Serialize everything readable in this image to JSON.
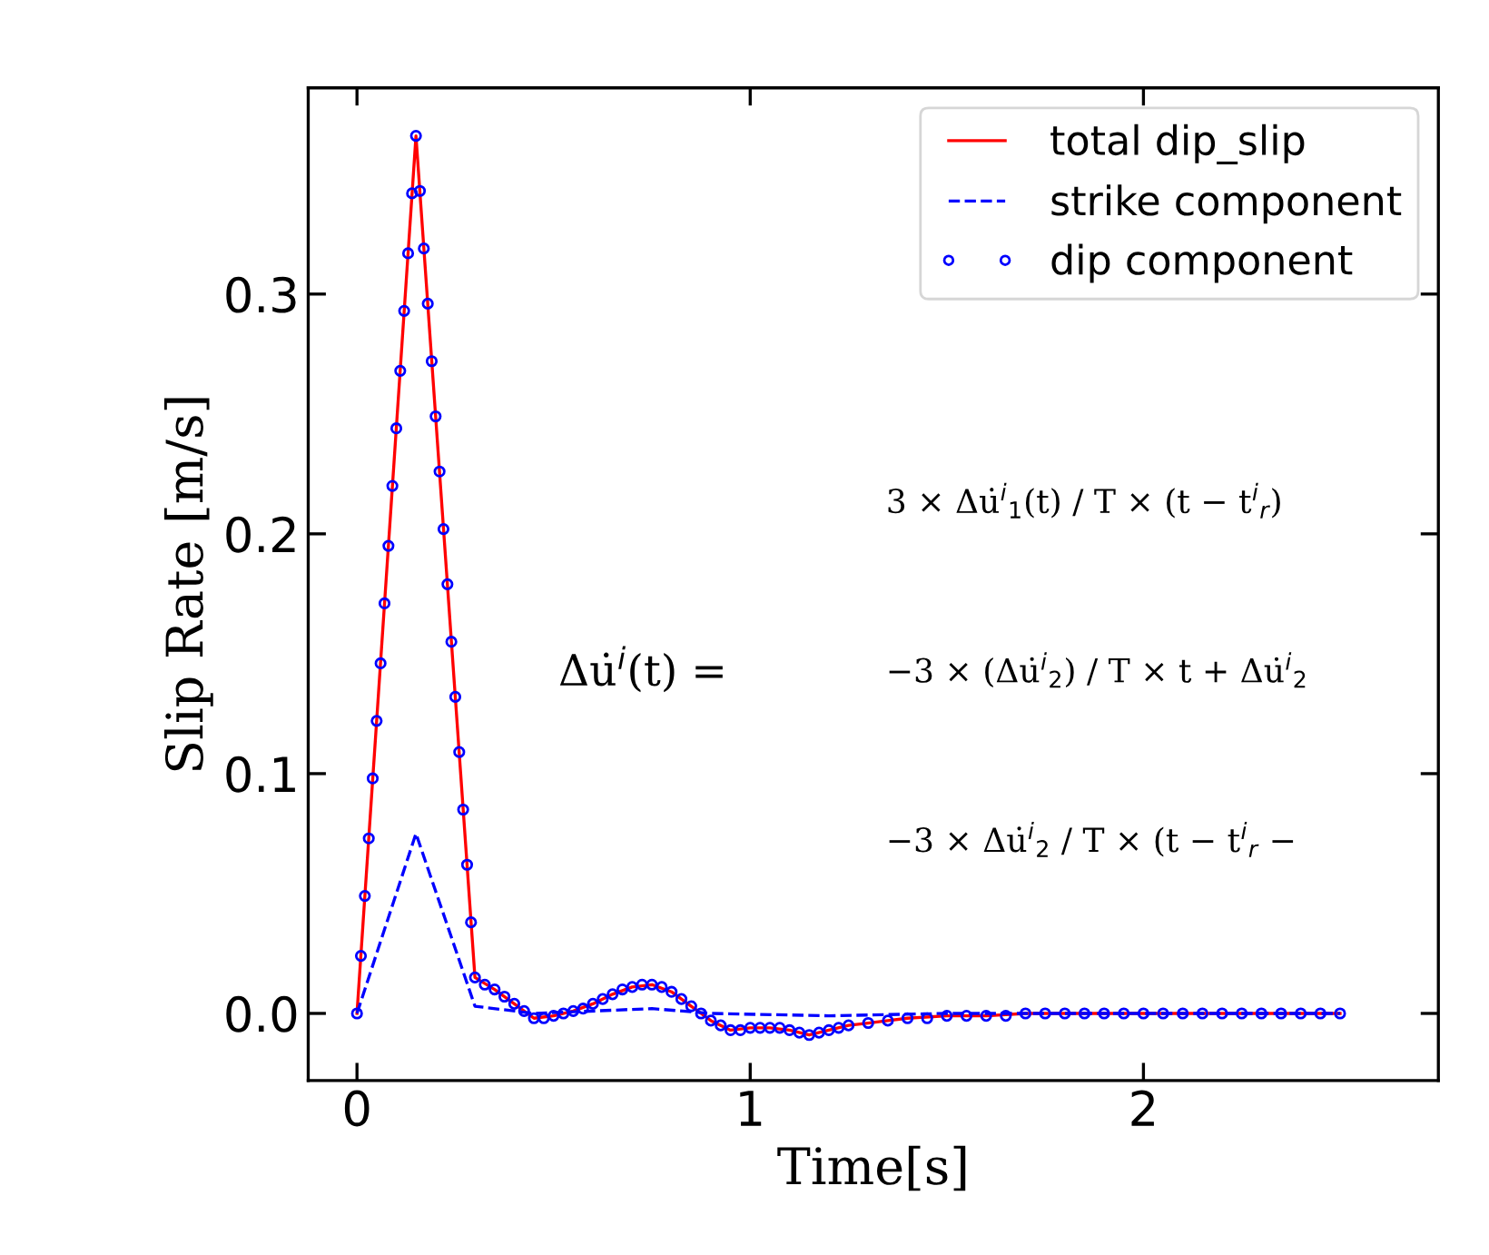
{
  "chart_data": {
    "type": "line",
    "xlabel": "Time[s]",
    "ylabel": "Slip Rate [m/s]",
    "xlim": [
      -0.124,
      2.75
    ],
    "ylim": [
      -0.028,
      0.386
    ],
    "xticks": [
      0,
      1,
      2
    ],
    "yticks": [
      {
        "value": 0,
        "label": "0.0"
      },
      0.1,
      0.2,
      0.3
    ],
    "grid": false,
    "legend": "top right",
    "series": [
      {
        "name": "total dip_slip",
        "color": "#ff0000",
        "line_style": "solid",
        "marker": "none",
        "x": [
          0,
          0.15,
          0.3,
          0.35,
          0.4,
          0.45,
          0.5,
          0.55,
          0.6,
          0.65,
          0.7,
          0.75,
          0.8,
          0.85,
          0.9,
          0.95,
          1.0,
          1.05,
          1.1,
          1.15,
          1.2,
          1.25,
          1.3,
          1.35,
          1.4,
          1.5,
          1.6,
          1.7,
          2.0,
          2.5
        ],
        "values": [
          0,
          0.366,
          0.015,
          0.01,
          0.004,
          -0.002,
          -0.001,
          0.001,
          0.004,
          0.008,
          0.011,
          0.012,
          0.009,
          0.003,
          -0.003,
          -0.007,
          -0.006,
          -0.006,
          -0.007,
          -0.009,
          -0.007,
          -0.005,
          -0.004,
          -0.003,
          -0.002,
          -0.001,
          -0.001,
          0,
          0,
          0
        ]
      },
      {
        "name": "strike component",
        "color": "#0000ff",
        "line_style": "dashed",
        "marker": "none",
        "x": [
          0,
          0.15,
          0.3,
          0.45,
          0.75,
          0.9,
          1.2,
          1.5,
          2.5
        ],
        "values": [
          0,
          0.075,
          0.003,
          0.0,
          0.002,
          0.0,
          -0.001,
          0.0,
          0.0
        ]
      },
      {
        "name": "dip component",
        "type": "scatter",
        "color": "#0000ff",
        "marker": "circle",
        "x": [
          0,
          0.01,
          0.02,
          0.03,
          0.04,
          0.05,
          0.06,
          0.07,
          0.08,
          0.09,
          0.1,
          0.11,
          0.12,
          0.13,
          0.14,
          0.15,
          0.16,
          0.17,
          0.18,
          0.19,
          0.2,
          0.21,
          0.22,
          0.23,
          0.24,
          0.25,
          0.26,
          0.27,
          0.28,
          0.29,
          0.3,
          0.325,
          0.35,
          0.375,
          0.4,
          0.425,
          0.45,
          0.475,
          0.5,
          0.525,
          0.55,
          0.575,
          0.6,
          0.625,
          0.65,
          0.675,
          0.7,
          0.725,
          0.75,
          0.775,
          0.8,
          0.825,
          0.85,
          0.875,
          0.9,
          0.925,
          0.95,
          0.975,
          1.0,
          1.025,
          1.05,
          1.075,
          1.1,
          1.125,
          1.15,
          1.175,
          1.2,
          1.225,
          1.25,
          1.3,
          1.35,
          1.4,
          1.45,
          1.5,
          1.55,
          1.6,
          1.65,
          1.7,
          1.75,
          1.8,
          1.85,
          1.9,
          1.95,
          2.0,
          2.05,
          2.1,
          2.15,
          2.2,
          2.25,
          2.3,
          2.35,
          2.4,
          2.45,
          2.5
        ],
        "values": [
          0,
          0.024,
          0.049,
          0.073,
          0.098,
          0.122,
          0.146,
          0.171,
          0.195,
          0.22,
          0.244,
          0.268,
          0.293,
          0.317,
          0.342,
          0.366,
          0.343,
          0.319,
          0.296,
          0.272,
          0.249,
          0.226,
          0.202,
          0.179,
          0.155,
          0.132,
          0.109,
          0.085,
          0.062,
          0.038,
          0.015,
          0.012,
          0.01,
          0.007,
          0.004,
          0.001,
          -0.002,
          -0.002,
          -0.001,
          0.0,
          0.001,
          0.002,
          0.004,
          0.006,
          0.008,
          0.01,
          0.011,
          0.012,
          0.012,
          0.011,
          0.009,
          0.006,
          0.003,
          0.0,
          -0.003,
          -0.005,
          -0.007,
          -0.007,
          -0.006,
          -0.006,
          -0.006,
          -0.006,
          -0.007,
          -0.008,
          -0.009,
          -0.008,
          -0.007,
          -0.006,
          -0.005,
          -0.004,
          -0.003,
          -0.002,
          -0.002,
          -0.001,
          -0.001,
          -0.001,
          -0.001,
          0,
          0,
          0,
          0,
          0,
          0,
          0,
          0,
          0,
          0,
          0,
          0,
          0,
          0,
          0,
          0,
          0
        ]
      }
    ],
    "annotations": [
      "Δu̇$^{i}$(t) =",
      "3 × Δu̇$^{i}$$_{1}$(t) / T × (t − t$^{i}$$_{r}$)",
      "−3 × (Δu̇$^{i}$$_{2}$) / T × t + Δu̇$^{i}$$_{2}$",
      "−3 × Δu̇$^{i}$$_{2}$ / T × (t − t$^{i}$$_{r}$ −"
    ]
  }
}
